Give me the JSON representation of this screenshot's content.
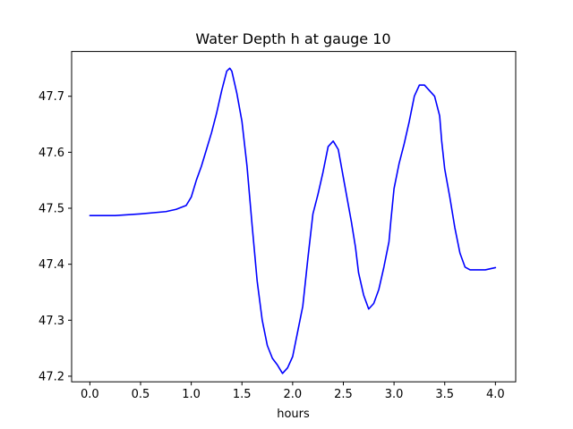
{
  "chart_data": {
    "type": "line",
    "title": "Water Depth h at gauge 10",
    "xlabel": "hours",
    "ylabel": "",
    "xlim": [
      -0.18,
      4.2
    ],
    "ylim": [
      47.19,
      47.78
    ],
    "x_ticks": [
      0.0,
      0.5,
      1.0,
      1.5,
      2.0,
      2.5,
      3.0,
      3.5,
      4.0
    ],
    "x_tick_labels": [
      "0.0",
      "0.5",
      "1.0",
      "1.5",
      "2.0",
      "2.5",
      "3.0",
      "3.5",
      "4.0"
    ],
    "y_ticks": [
      47.2,
      47.3,
      47.4,
      47.5,
      47.6,
      47.7
    ],
    "y_tick_labels": [
      "47.2",
      "47.3",
      "47.4",
      "47.5",
      "47.6",
      "47.7"
    ],
    "grid": false,
    "line_color": "#0000ff",
    "series": [
      {
        "x": [
          0.0,
          0.25,
          0.5,
          0.75,
          0.85,
          0.95,
          1.0,
          1.05,
          1.1,
          1.15,
          1.2,
          1.25,
          1.3,
          1.35,
          1.38,
          1.4,
          1.45,
          1.5,
          1.55,
          1.6,
          1.65,
          1.7,
          1.75,
          1.8,
          1.85,
          1.9,
          1.95,
          2.0,
          2.05,
          2.1,
          2.15,
          2.2,
          2.25,
          2.3,
          2.35,
          2.4,
          2.45,
          2.5,
          2.55,
          2.58,
          2.62,
          2.65,
          2.7,
          2.75,
          2.8,
          2.85,
          2.9,
          2.95,
          2.97,
          3.0,
          3.05,
          3.1,
          3.15,
          3.2,
          3.25,
          3.3,
          3.35,
          3.4,
          3.45,
          3.47,
          3.5,
          3.55,
          3.6,
          3.65,
          3.7,
          3.75,
          3.8,
          3.85,
          3.9,
          3.95,
          4.0
        ],
        "y": [
          47.487,
          47.487,
          47.49,
          47.494,
          47.498,
          47.505,
          47.52,
          47.55,
          47.575,
          47.605,
          47.635,
          47.67,
          47.71,
          47.745,
          47.75,
          47.745,
          47.705,
          47.655,
          47.575,
          47.47,
          47.37,
          47.3,
          47.255,
          47.232,
          47.22,
          47.205,
          47.215,
          47.235,
          47.28,
          47.325,
          47.41,
          47.49,
          47.525,
          47.565,
          47.61,
          47.62,
          47.605,
          47.555,
          47.505,
          47.475,
          47.43,
          47.385,
          47.345,
          47.32,
          47.33,
          47.355,
          47.395,
          47.44,
          47.48,
          47.535,
          47.58,
          47.615,
          47.655,
          47.7,
          47.72,
          47.72,
          47.71,
          47.7,
          47.665,
          47.62,
          47.57,
          47.52,
          47.465,
          47.42,
          47.395,
          47.39,
          47.39,
          47.39,
          47.39,
          47.392,
          47.394
        ]
      }
    ]
  }
}
